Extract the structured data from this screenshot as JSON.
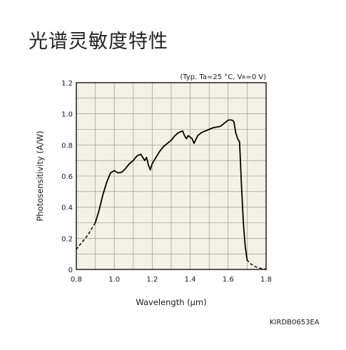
{
  "page": {
    "title": "光谱灵敏度特性",
    "figure_code": "KIRDB0653EA"
  },
  "chart_data": {
    "type": "line",
    "title": "",
    "condition": "(Typ. Ta=25 °C, V",
    "condition_sub": "R",
    "condition_tail": "=0 V)",
    "xlabel": "Wavelength (μm)",
    "ylabel": "Photosensitivity (A/W)",
    "xlim": [
      0.8,
      1.8
    ],
    "ylim": [
      0,
      1.2
    ],
    "grid": true,
    "x_ticks": [
      0.8,
      1.0,
      1.2,
      1.4,
      1.6,
      1.8
    ],
    "x_tick_labels": [
      "0.8",
      "1.0",
      "1.2",
      "1.4",
      "1.6",
      "1.8"
    ],
    "y_ticks": [
      0,
      0.2,
      0.4,
      0.6,
      0.8,
      1.0,
      1.2
    ],
    "y_tick_labels": [
      "0",
      "0.2",
      "0.4",
      "0.6",
      "0.8",
      "1.0",
      "1.2"
    ],
    "series": [
      {
        "style": "dashed",
        "x": [
          0.8,
          0.82,
          0.84,
          0.86,
          0.88,
          0.9
        ],
        "y": [
          0.13,
          0.16,
          0.19,
          0.22,
          0.26,
          0.3
        ]
      },
      {
        "style": "solid",
        "x": [
          0.9,
          0.92,
          0.94,
          0.96,
          0.98,
          1.0,
          1.02,
          1.04,
          1.06,
          1.08,
          1.1,
          1.12,
          1.14,
          1.16,
          1.17,
          1.18,
          1.19,
          1.2,
          1.22,
          1.24,
          1.26,
          1.28,
          1.3,
          1.32,
          1.34,
          1.36,
          1.37,
          1.38,
          1.39,
          1.4,
          1.41,
          1.42,
          1.44,
          1.46,
          1.48,
          1.5,
          1.52,
          1.54,
          1.56,
          1.58,
          1.6,
          1.62,
          1.63,
          1.64,
          1.65,
          1.66,
          1.67,
          1.68,
          1.69,
          1.7
        ],
        "y": [
          0.3,
          0.38,
          0.48,
          0.56,
          0.62,
          0.635,
          0.62,
          0.625,
          0.65,
          0.68,
          0.7,
          0.73,
          0.74,
          0.7,
          0.72,
          0.67,
          0.64,
          0.68,
          0.72,
          0.76,
          0.79,
          0.81,
          0.83,
          0.86,
          0.88,
          0.89,
          0.86,
          0.84,
          0.86,
          0.85,
          0.84,
          0.81,
          0.86,
          0.88,
          0.89,
          0.9,
          0.91,
          0.915,
          0.92,
          0.94,
          0.96,
          0.96,
          0.95,
          0.88,
          0.84,
          0.82,
          0.55,
          0.3,
          0.15,
          0.06
        ]
      },
      {
        "style": "dashed",
        "x": [
          1.7,
          1.72,
          1.74,
          1.76,
          1.78,
          1.8
        ],
        "y": [
          0.06,
          0.035,
          0.02,
          0.01,
          0.005,
          0.0
        ]
      }
    ]
  },
  "colors": {
    "plot_background": "#f3f1e6",
    "grid": "#8a8a8a",
    "frame": "#000000",
    "curve": "#000000"
  }
}
